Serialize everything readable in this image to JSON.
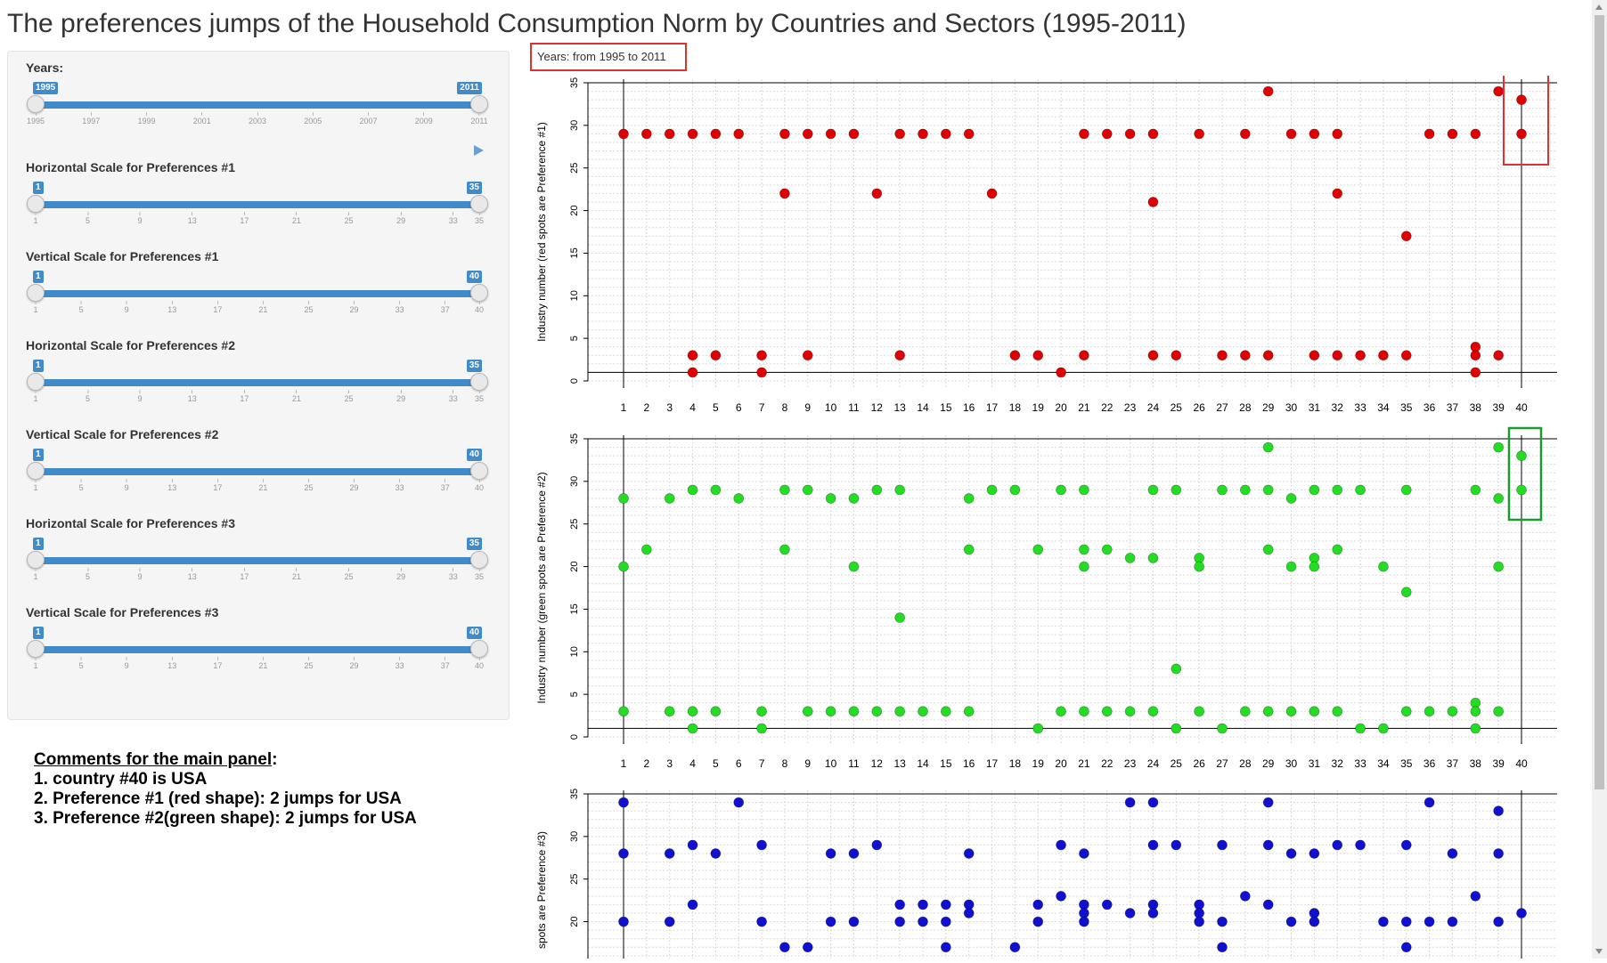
{
  "title": "The preferences jumps of the Household Consumption Norm by Countries and Sectors (1995-2011)",
  "sidebar": {
    "sliders": [
      {
        "label": "Years:",
        "min": "1995",
        "max": "2011",
        "ticks": [
          "1995",
          "1997",
          "1999",
          "2001",
          "2003",
          "2005",
          "2007",
          "2009",
          "2011"
        ],
        "play": true
      },
      {
        "label": "Horizontal Scale for Preferences #1",
        "min": "1",
        "max": "35",
        "ticks": [
          "1",
          "5",
          "9",
          "13",
          "17",
          "21",
          "25",
          "29",
          "33",
          "35"
        ]
      },
      {
        "label": "Vertical Scale for Preferences #1",
        "min": "1",
        "max": "40",
        "ticks": [
          "1",
          "5",
          "9",
          "13",
          "17",
          "21",
          "25",
          "29",
          "33",
          "37",
          "40"
        ]
      },
      {
        "label": "Horizontal Scale for Preferences #2",
        "min": "1",
        "max": "35",
        "ticks": [
          "1",
          "5",
          "9",
          "13",
          "17",
          "21",
          "25",
          "29",
          "33",
          "35"
        ]
      },
      {
        "label": "Vertical Scale for Preferences #2",
        "min": "1",
        "max": "40",
        "ticks": [
          "1",
          "5",
          "9",
          "13",
          "17",
          "21",
          "25",
          "29",
          "33",
          "37",
          "40"
        ]
      },
      {
        "label": "Horizontal Scale for Preferences #3",
        "min": "1",
        "max": "35",
        "ticks": [
          "1",
          "5",
          "9",
          "13",
          "17",
          "21",
          "25",
          "29",
          "33",
          "35"
        ]
      },
      {
        "label": "Vertical Scale for Preferences #3",
        "min": "1",
        "max": "40",
        "ticks": [
          "1",
          "5",
          "9",
          "13",
          "17",
          "21",
          "25",
          "29",
          "33",
          "37",
          "40"
        ]
      }
    ],
    "play_icon": "play-icon"
  },
  "comments": {
    "title": "Comments for the main panel",
    "lines": [
      "1. country #40 is USA",
      "2. Preference #1 (red shape): 2 jumps for USA",
      "3. Preference #2(green shape): 2 jumps for USA"
    ]
  },
  "years_label": "Years: from 1995 to 2011",
  "colors": {
    "pref1": "#e00000",
    "pref2": "#22dd22",
    "pref3": "#1010d0",
    "slider": "#428bca",
    "highlight_red": "#e03030",
    "highlight_green": "#1a9a30"
  },
  "chart_data": [
    {
      "type": "scatter",
      "ylabel": "Industry number (red spots are Preference #1)",
      "xlim": [
        1,
        40
      ],
      "ylim": [
        0,
        35
      ],
      "xticks": [
        "1",
        "2",
        "3",
        "4",
        "5",
        "6",
        "7",
        "8",
        "9",
        "10",
        "11",
        "12",
        "13",
        "14",
        "15",
        "16",
        "17",
        "18",
        "19",
        "20",
        "21",
        "22",
        "23",
        "24",
        "25",
        "26",
        "27",
        "28",
        "29",
        "30",
        "31",
        "32",
        "33",
        "34",
        "35",
        "36",
        "37",
        "38",
        "39",
        "40"
      ],
      "yticks": [
        "0",
        "5",
        "10",
        "15",
        "20",
        "25",
        "30",
        "35"
      ],
      "color": "#e00000",
      "points": [
        [
          1,
          29
        ],
        [
          2,
          29
        ],
        [
          3,
          29
        ],
        [
          4,
          29
        ],
        [
          4,
          3
        ],
        [
          4,
          1
        ],
        [
          5,
          29
        ],
        [
          5,
          3
        ],
        [
          6,
          29
        ],
        [
          7,
          3
        ],
        [
          7,
          1
        ],
        [
          8,
          29
        ],
        [
          8,
          22
        ],
        [
          9,
          29
        ],
        [
          9,
          3
        ],
        [
          10,
          29
        ],
        [
          11,
          29
        ],
        [
          12,
          22
        ],
        [
          13,
          29
        ],
        [
          13,
          3
        ],
        [
          14,
          29
        ],
        [
          15,
          29
        ],
        [
          16,
          29
        ],
        [
          17,
          22
        ],
        [
          18,
          3
        ],
        [
          19,
          3
        ],
        [
          20,
          1
        ],
        [
          21,
          29
        ],
        [
          21,
          3
        ],
        [
          22,
          29
        ],
        [
          23,
          29
        ],
        [
          24,
          29
        ],
        [
          24,
          21
        ],
        [
          24,
          3
        ],
        [
          25,
          3
        ],
        [
          26,
          29
        ],
        [
          27,
          3
        ],
        [
          28,
          29
        ],
        [
          28,
          3
        ],
        [
          29,
          34
        ],
        [
          29,
          3
        ],
        [
          30,
          29
        ],
        [
          31,
          29
        ],
        [
          31,
          3
        ],
        [
          32,
          29
        ],
        [
          32,
          22
        ],
        [
          32,
          3
        ],
        [
          33,
          3
        ],
        [
          34,
          3
        ],
        [
          35,
          17
        ],
        [
          35,
          3
        ],
        [
          36,
          29
        ],
        [
          37,
          29
        ],
        [
          38,
          29
        ],
        [
          38,
          4
        ],
        [
          38,
          3
        ],
        [
          38,
          1
        ],
        [
          39,
          34
        ],
        [
          39,
          3
        ],
        [
          40,
          33
        ],
        [
          40,
          29
        ]
      ]
    },
    {
      "type": "scatter",
      "ylabel": "Industry number (green spots are Preference #2)",
      "xlim": [
        1,
        40
      ],
      "ylim": [
        0,
        35
      ],
      "xticks": [
        "1",
        "2",
        "3",
        "4",
        "5",
        "6",
        "7",
        "8",
        "9",
        "10",
        "11",
        "12",
        "13",
        "14",
        "15",
        "16",
        "17",
        "18",
        "19",
        "20",
        "21",
        "22",
        "23",
        "24",
        "25",
        "26",
        "27",
        "28",
        "29",
        "30",
        "31",
        "32",
        "33",
        "34",
        "35",
        "36",
        "37",
        "38",
        "39",
        "40"
      ],
      "yticks": [
        "0",
        "5",
        "10",
        "15",
        "20",
        "25",
        "30",
        "35"
      ],
      "color": "#22dd22",
      "points": [
        [
          1,
          28
        ],
        [
          1,
          20
        ],
        [
          1,
          3
        ],
        [
          2,
          22
        ],
        [
          3,
          28
        ],
        [
          3,
          3
        ],
        [
          4,
          29
        ],
        [
          4,
          3
        ],
        [
          4,
          1
        ],
        [
          5,
          29
        ],
        [
          5,
          3
        ],
        [
          6,
          28
        ],
        [
          7,
          3
        ],
        [
          7,
          1
        ],
        [
          8,
          29
        ],
        [
          8,
          22
        ],
        [
          9,
          29
        ],
        [
          9,
          3
        ],
        [
          10,
          28
        ],
        [
          10,
          3
        ],
        [
          11,
          28
        ],
        [
          11,
          20
        ],
        [
          11,
          3
        ],
        [
          12,
          29
        ],
        [
          12,
          3
        ],
        [
          13,
          29
        ],
        [
          13,
          14
        ],
        [
          13,
          3
        ],
        [
          14,
          3
        ],
        [
          15,
          3
        ],
        [
          16,
          28
        ],
        [
          16,
          22
        ],
        [
          16,
          3
        ],
        [
          17,
          29
        ],
        [
          18,
          29
        ],
        [
          19,
          22
        ],
        [
          19,
          1
        ],
        [
          20,
          29
        ],
        [
          20,
          3
        ],
        [
          21,
          29
        ],
        [
          21,
          22
        ],
        [
          21,
          20
        ],
        [
          21,
          3
        ],
        [
          22,
          22
        ],
        [
          22,
          3
        ],
        [
          23,
          21
        ],
        [
          23,
          3
        ],
        [
          24,
          29
        ],
        [
          24,
          21
        ],
        [
          24,
          3
        ],
        [
          25,
          29
        ],
        [
          25,
          8
        ],
        [
          25,
          1
        ],
        [
          26,
          21
        ],
        [
          26,
          20
        ],
        [
          26,
          3
        ],
        [
          27,
          29
        ],
        [
          27,
          1
        ],
        [
          28,
          29
        ],
        [
          28,
          3
        ],
        [
          29,
          34
        ],
        [
          29,
          29
        ],
        [
          29,
          22
        ],
        [
          29,
          3
        ],
        [
          30,
          28
        ],
        [
          30,
          20
        ],
        [
          30,
          3
        ],
        [
          31,
          29
        ],
        [
          31,
          21
        ],
        [
          31,
          20
        ],
        [
          31,
          3
        ],
        [
          32,
          29
        ],
        [
          32,
          22
        ],
        [
          32,
          3
        ],
        [
          33,
          29
        ],
        [
          33,
          1
        ],
        [
          34,
          20
        ],
        [
          34,
          1
        ],
        [
          35,
          29
        ],
        [
          35,
          17
        ],
        [
          35,
          3
        ],
        [
          36,
          3
        ],
        [
          37,
          3
        ],
        [
          38,
          29
        ],
        [
          38,
          4
        ],
        [
          38,
          3
        ],
        [
          38,
          1
        ],
        [
          39,
          34
        ],
        [
          39,
          28
        ],
        [
          39,
          20
        ],
        [
          39,
          3
        ],
        [
          40,
          33
        ],
        [
          40,
          29
        ]
      ]
    },
    {
      "type": "scatter",
      "ylabel": "spots are Preference #3)",
      "xlim": [
        1,
        40
      ],
      "ylim": [
        0,
        35
      ],
      "yticks": [
        "20",
        "25",
        "30",
        "35"
      ],
      "color": "#1010d0",
      "points": [
        [
          1,
          34
        ],
        [
          1,
          28
        ],
        [
          1,
          20
        ],
        [
          3,
          28
        ],
        [
          3,
          20
        ],
        [
          4,
          29
        ],
        [
          4,
          22
        ],
        [
          5,
          28
        ],
        [
          6,
          34
        ],
        [
          7,
          29
        ],
        [
          7,
          20
        ],
        [
          8,
          17
        ],
        [
          9,
          17
        ],
        [
          10,
          28
        ],
        [
          10,
          20
        ],
        [
          11,
          28
        ],
        [
          11,
          20
        ],
        [
          12,
          29
        ],
        [
          13,
          22
        ],
        [
          13,
          20
        ],
        [
          14,
          22
        ],
        [
          14,
          20
        ],
        [
          15,
          22
        ],
        [
          15,
          20
        ],
        [
          15,
          17
        ],
        [
          16,
          28
        ],
        [
          16,
          22
        ],
        [
          16,
          21
        ],
        [
          18,
          17
        ],
        [
          19,
          22
        ],
        [
          19,
          20
        ],
        [
          20,
          29
        ],
        [
          20,
          23
        ],
        [
          21,
          28
        ],
        [
          21,
          22
        ],
        [
          21,
          21
        ],
        [
          21,
          20
        ],
        [
          22,
          22
        ],
        [
          23,
          34
        ],
        [
          23,
          21
        ],
        [
          24,
          34
        ],
        [
          24,
          29
        ],
        [
          24,
          22
        ],
        [
          24,
          21
        ],
        [
          25,
          29
        ],
        [
          26,
          22
        ],
        [
          26,
          21
        ],
        [
          26,
          20
        ],
        [
          27,
          29
        ],
        [
          27,
          20
        ],
        [
          27,
          17
        ],
        [
          28,
          23
        ],
        [
          29,
          34
        ],
        [
          29,
          29
        ],
        [
          29,
          22
        ],
        [
          30,
          28
        ],
        [
          30,
          20
        ],
        [
          31,
          28
        ],
        [
          31,
          21
        ],
        [
          31,
          20
        ],
        [
          32,
          29
        ],
        [
          33,
          29
        ],
        [
          34,
          20
        ],
        [
          35,
          29
        ],
        [
          35,
          20
        ],
        [
          35,
          17
        ],
        [
          36,
          34
        ],
        [
          36,
          20
        ],
        [
          37,
          28
        ],
        [
          37,
          20
        ],
        [
          38,
          23
        ],
        [
          39,
          33
        ],
        [
          39,
          28
        ],
        [
          39,
          20
        ],
        [
          40,
          21
        ]
      ]
    }
  ]
}
